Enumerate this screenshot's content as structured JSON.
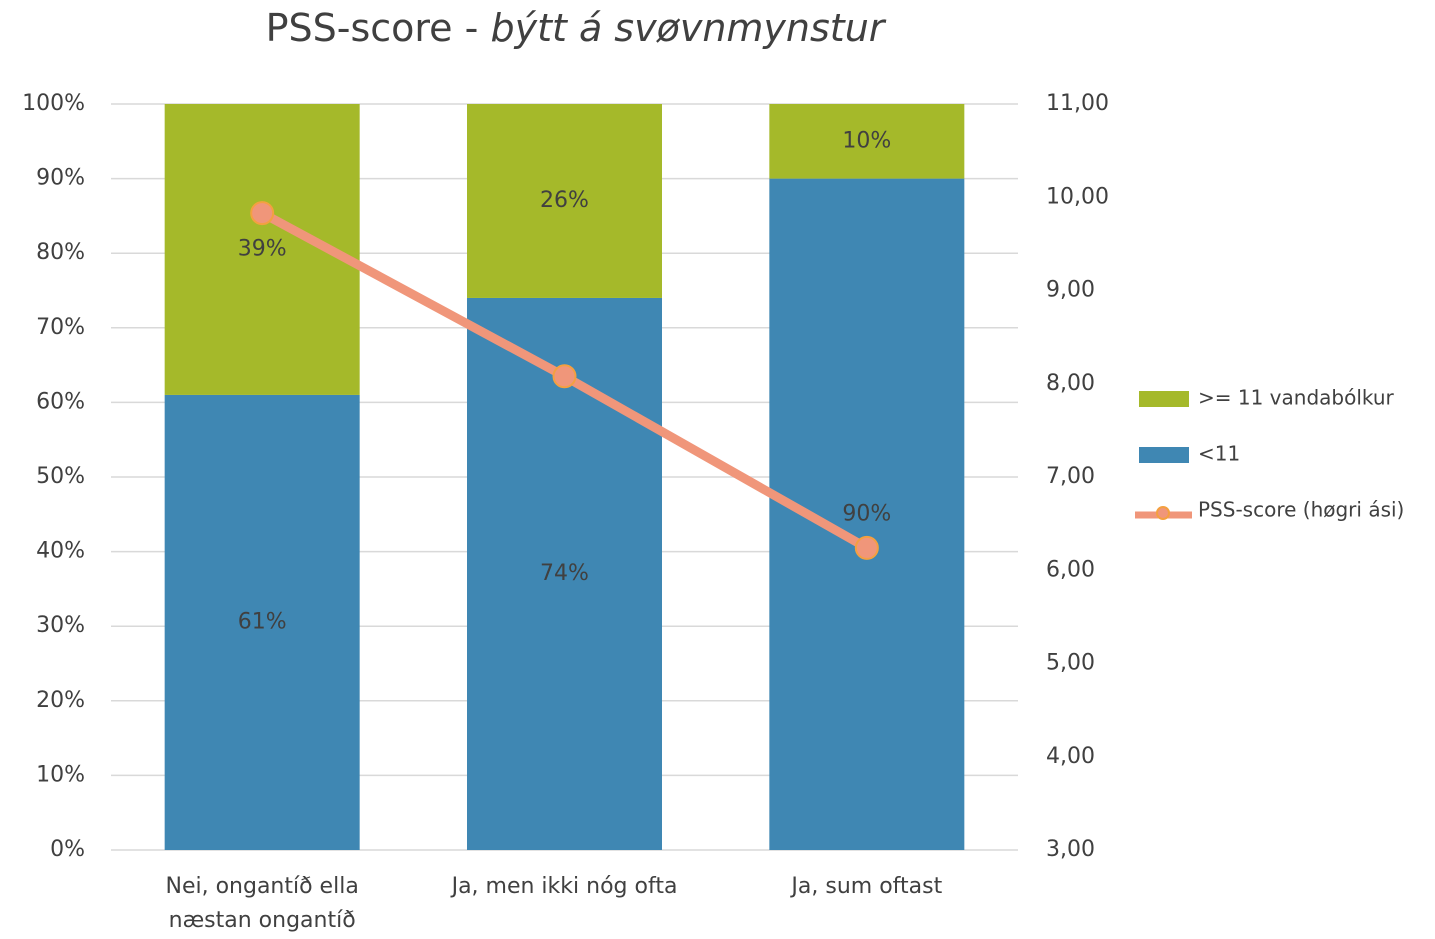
{
  "chart_data": {
    "type": "bar_line",
    "title": {
      "text": "PSS-score -",
      "italic": "býtt á svøvnmynstur"
    },
    "categories": [
      "Nei, ongantíð ella næstan ongantíð",
      "Ja, men ikki nóg ofta",
      "Ja, sum oftast"
    ],
    "series": [
      {
        "name": "<11",
        "color": "#3f87b3",
        "values": [
          61,
          74,
          90
        ],
        "value_labels": [
          "61%",
          "74%",
          "90%"
        ]
      },
      {
        "name": ">= 11 vandabólkur",
        "color": "#a5b92a",
        "values": [
          39,
          26,
          10
        ],
        "value_labels": [
          "39%",
          "26%",
          "10%"
        ]
      },
      {
        "name": "PSS-score (høgri ási)",
        "type": "line",
        "axis": "y2",
        "color": "#f0967a",
        "marker_edge": "#f4a040",
        "values": [
          9.83,
          8.08,
          6.24
        ]
      }
    ],
    "stacked": true,
    "ylim": [
      0,
      100
    ],
    "yticks": [
      {
        "value": 0,
        "label": "0%"
      },
      {
        "value": 10,
        "label": "10%"
      },
      {
        "value": 20,
        "label": "20%"
      },
      {
        "value": 30,
        "label": "30%"
      },
      {
        "value": 40,
        "label": "40%"
      },
      {
        "value": 50,
        "label": "50%"
      },
      {
        "value": 60,
        "label": "60%"
      },
      {
        "value": 70,
        "label": "70%"
      },
      {
        "value": 80,
        "label": "80%"
      },
      {
        "value": 90,
        "label": "90%"
      },
      {
        "value": 100,
        "label": "100%"
      }
    ],
    "y2lim": [
      3,
      11
    ],
    "y2ticks": [
      {
        "value": 3,
        "label": "3,00"
      },
      {
        "value": 4,
        "label": "4,00"
      },
      {
        "value": 5,
        "label": "5,00"
      },
      {
        "value": 6,
        "label": "6,00"
      },
      {
        "value": 7,
        "label": "7,00"
      },
      {
        "value": 8,
        "label": "8,00"
      },
      {
        "value": 9,
        "label": "9,00"
      },
      {
        "value": 10,
        "label": "10,00"
      },
      {
        "value": 11,
        "label": "11,00"
      }
    ],
    "grid": true,
    "legend": "right"
  }
}
